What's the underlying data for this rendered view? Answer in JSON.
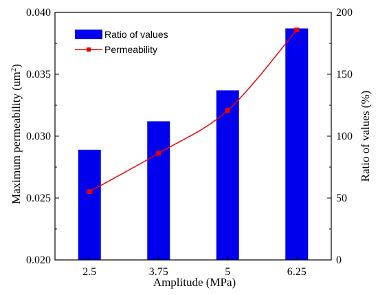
{
  "chart_data": {
    "type": "bar",
    "categories": [
      "2.5",
      "3.75",
      "5",
      "6.25"
    ],
    "xlabel": "Amplitude (MPa)",
    "ylabel_left": "Maximum permeability (um",
    "ylabel_left_sup": "2",
    "ylabel_left_end": ")",
    "ylabel_right": "Ratio of values (%)",
    "ylim_left": [
      0.02,
      0.04
    ],
    "yticks_left": [
      "0.020",
      "0.025",
      "0.030",
      "0.035",
      "0.040"
    ],
    "ylim_right": [
      0,
      200
    ],
    "yticks_right": [
      "0",
      "50",
      "100",
      "150",
      "200"
    ],
    "grid": false,
    "legend_position": "top-left",
    "series": [
      {
        "name": "Ratio of values",
        "kind": "bar",
        "axis": "right",
        "color": "#0000ee",
        "values": [
          89,
          112,
          137,
          187
        ]
      },
      {
        "name": "Permeability",
        "kind": "line",
        "axis": "left",
        "color": "#ee0000",
        "marker": "square",
        "values": [
          0.02552,
          0.02862,
          0.03208,
          0.03858
        ]
      }
    ]
  }
}
